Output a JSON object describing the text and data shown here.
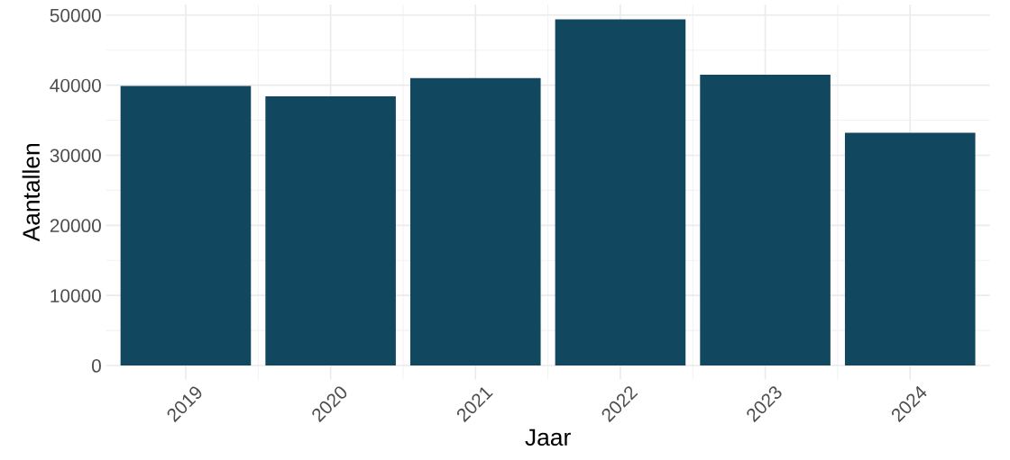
{
  "chart_data": {
    "type": "bar",
    "xlabel": "Jaar",
    "ylabel": "Aantallen",
    "categories": [
      "2019",
      "2020",
      "2021",
      "2022",
      "2023",
      "2024"
    ],
    "values": [
      39900,
      38400,
      41000,
      49400,
      41500,
      33200
    ],
    "color": "#11475f",
    "ylim": [
      -2000,
      51500
    ],
    "yticks": [
      0,
      10000,
      20000,
      30000,
      40000,
      50000
    ],
    "grid": true
  }
}
